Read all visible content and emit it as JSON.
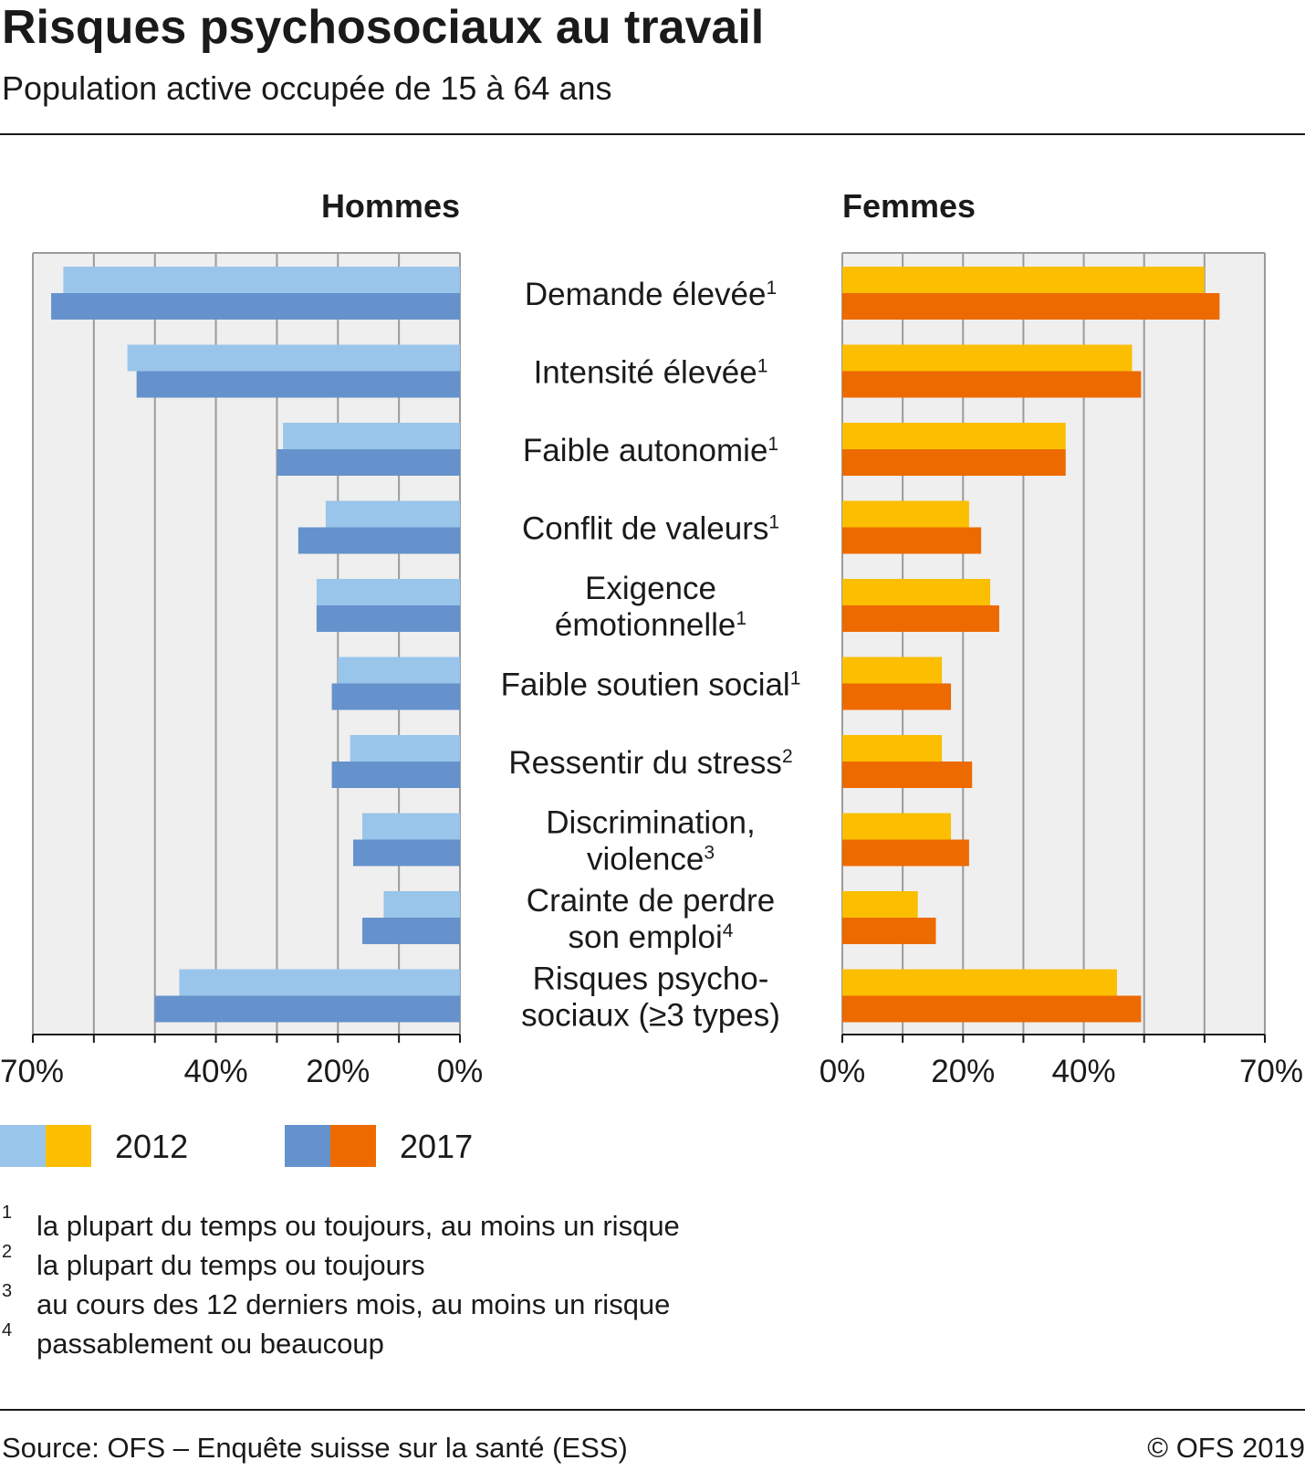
{
  "title": "Risques psychosociaux au travail",
  "subtitle": "Population active occupée de 15 à 64 ans",
  "chart_data": {
    "type": "bar",
    "orientation": "horizontal",
    "panels": [
      {
        "name": "Hommes",
        "direction": "leftward",
        "xlim": [
          0,
          70
        ],
        "ticks": [
          70,
          40,
          20,
          0
        ],
        "tick_labels": [
          "70%",
          "40%",
          "20%",
          "0%"
        ]
      },
      {
        "name": "Femmes",
        "direction": "rightward",
        "xlim": [
          0,
          70
        ],
        "ticks": [
          0,
          20,
          40,
          70
        ],
        "tick_labels": [
          "0%",
          "20%",
          "40%",
          "70%"
        ]
      }
    ],
    "categories": [
      {
        "lines": [
          "Demande élevée"
        ],
        "note": "1"
      },
      {
        "lines": [
          "Intensité élevée"
        ],
        "note": "1"
      },
      {
        "lines": [
          "Faible autonomie"
        ],
        "note": "1"
      },
      {
        "lines": [
          "Conflit de valeurs"
        ],
        "note": "1"
      },
      {
        "lines": [
          "Exigence",
          "émotionnelle"
        ],
        "note": "1"
      },
      {
        "lines": [
          "Faible soutien social"
        ],
        "note": "1"
      },
      {
        "lines": [
          "Ressentir du stress"
        ],
        "note": "2"
      },
      {
        "lines": [
          "Discrimination,",
          "violence"
        ],
        "note": "3"
      },
      {
        "lines": [
          "Crainte de perdre",
          "son emploi"
        ],
        "note": "4"
      },
      {
        "lines": [
          "Risques psycho-",
          "sociaux (≥3 types)"
        ],
        "note": ""
      }
    ],
    "series": [
      {
        "name": "2012",
        "hommes": [
          65,
          54.5,
          29,
          22,
          23.5,
          20,
          18,
          16,
          12.5,
          46
        ],
        "femmes": [
          60,
          48,
          37,
          21,
          24.5,
          16.5,
          16.5,
          18,
          12.5,
          45.5
        ]
      },
      {
        "name": "2017",
        "hommes": [
          67,
          53,
          30,
          26.5,
          23.5,
          21,
          21,
          17.5,
          16,
          50
        ],
        "femmes": [
          62.5,
          49.5,
          37,
          23,
          26,
          18,
          21.5,
          21,
          15.5,
          49.5
        ]
      }
    ],
    "colors": {
      "hommes": {
        "2012": "#99c5ea",
        "2017": "#6592cc"
      },
      "femmes": {
        "2012": "#fbbe00",
        "2017": "#ed6a00"
      },
      "plot_background": "#efefef",
      "gridline": "#9b9b9b"
    },
    "legend": [
      {
        "label": "2012",
        "colors": [
          "#99c5ea",
          "#fbbe00"
        ]
      },
      {
        "label": "2017",
        "colors": [
          "#6592cc",
          "#ed6a00"
        ]
      }
    ],
    "legend_position": "bottom-left"
  },
  "footnotes": [
    {
      "mark": "1",
      "text": "la plupart du temps ou toujours, au moins un risque"
    },
    {
      "mark": "2",
      "text": "la plupart du temps ou toujours"
    },
    {
      "mark": "3",
      "text": "au cours des 12 derniers mois, au moins un risque"
    },
    {
      "mark": "4",
      "text": "passablement ou beaucoup"
    }
  ],
  "source": "Source: OFS – Enquête suisse sur la santé (ESS)",
  "copyright": "© OFS 2019"
}
